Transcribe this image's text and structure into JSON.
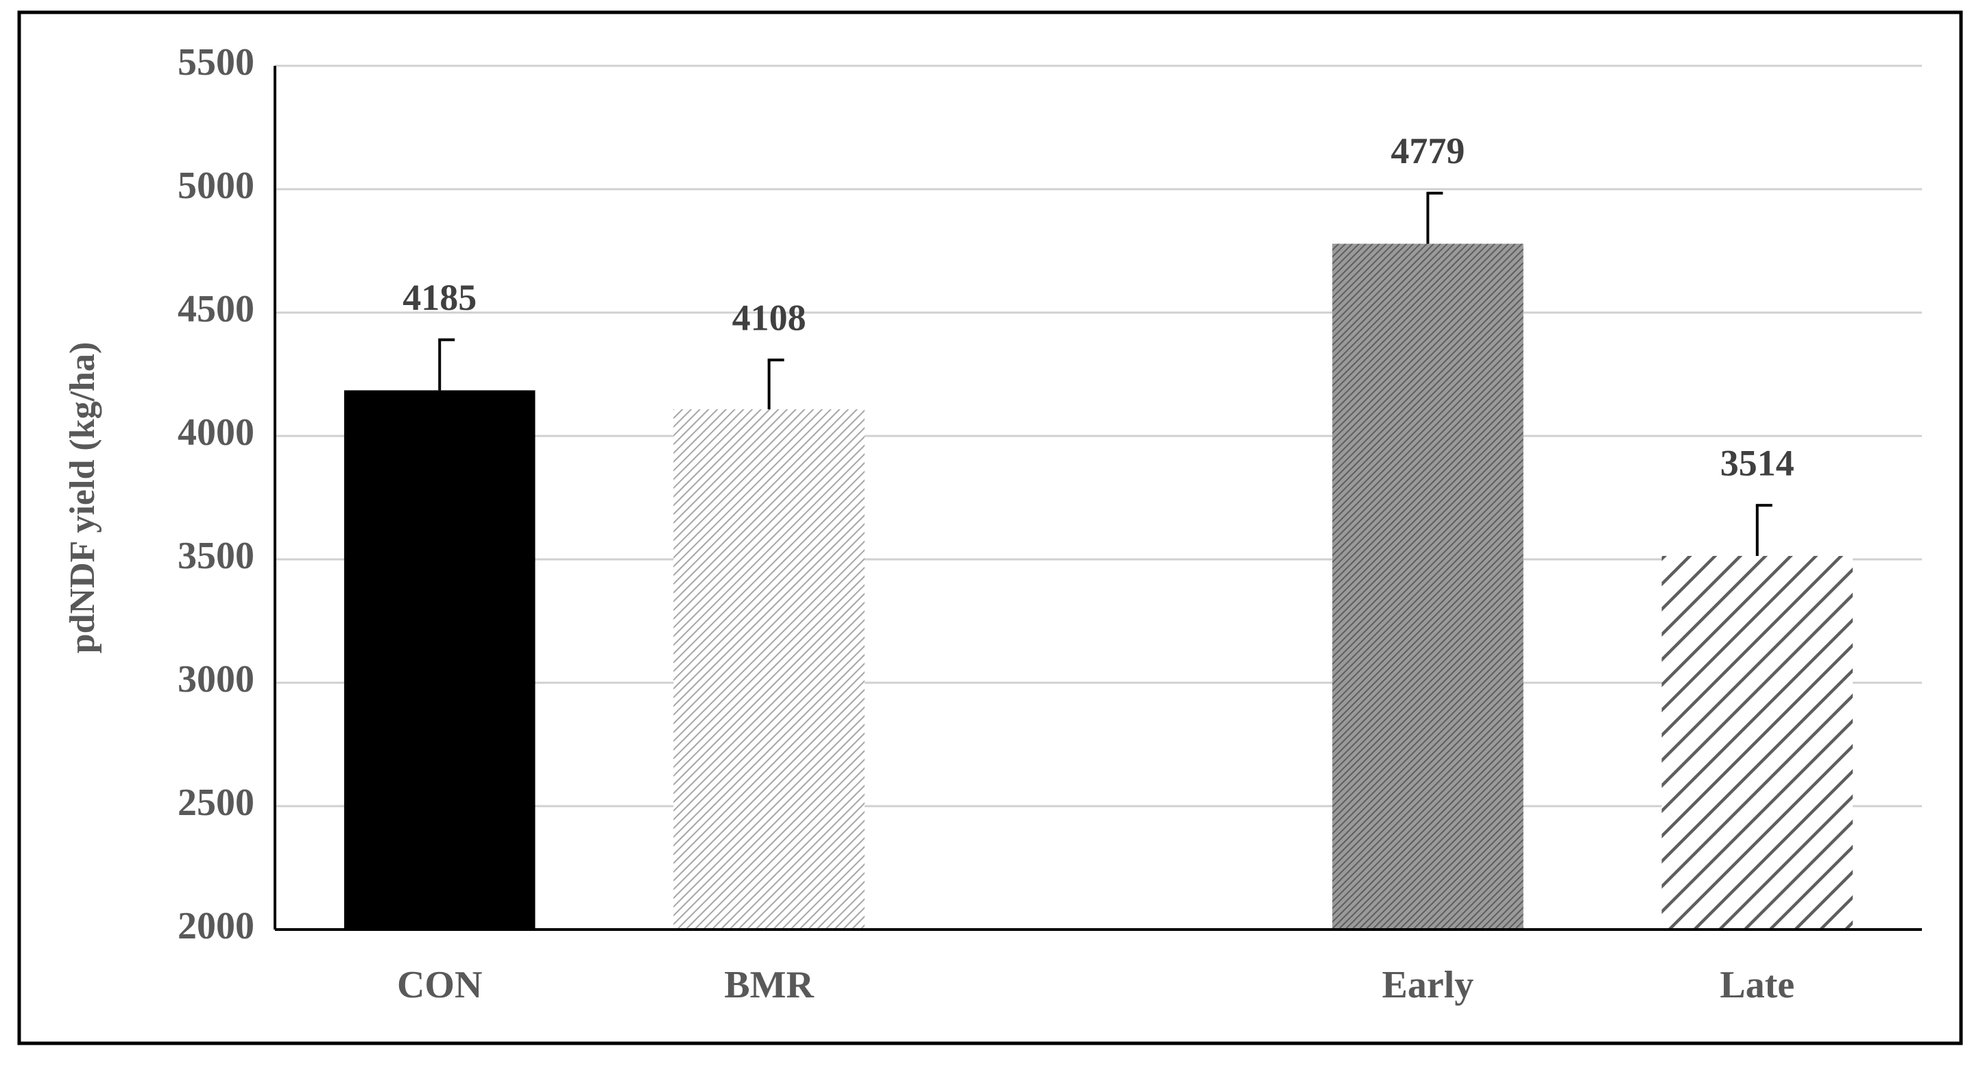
{
  "chart_data": {
    "type": "bar",
    "y_label": "pdNDF yield (kg/ha)",
    "categories": [
      "CON",
      "BMR",
      null,
      "Early",
      "Late"
    ],
    "values": [
      4185,
      4108,
      null,
      4779,
      3514
    ],
    "errors": [
      205,
      200,
      null,
      205,
      205
    ],
    "colors": [
      "#000000",
      "#a6a6a6",
      null,
      "#5e5e5e",
      "#5e5e5e"
    ],
    "ylim": [
      2000,
      5500
    ],
    "yticks": [
      2000,
      2500,
      3000,
      3500,
      4000,
      4500,
      5000,
      5500
    ],
    "grid": true
  }
}
